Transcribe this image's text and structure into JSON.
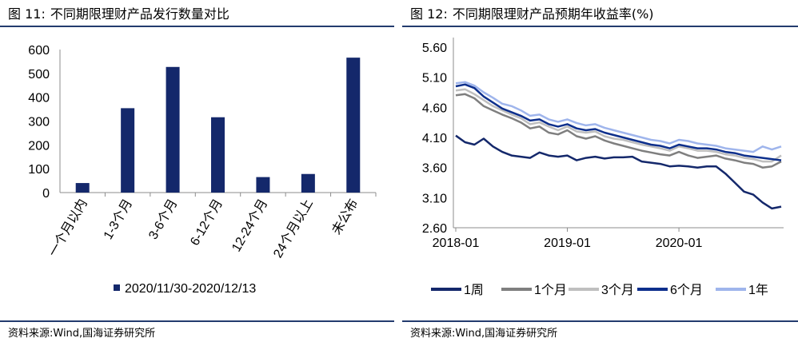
{
  "charts": [
    {
      "figure_label": "图 11:",
      "title": "不同期限理财产品发行数量对比",
      "source": "资料来源:Wind,国海证券研究所"
    },
    {
      "figure_label": "图 12:",
      "title": "不同期限理财产品预期年收益率(%)",
      "source": "资料来源:Wind,国海证券研究所"
    }
  ],
  "chart_data": [
    {
      "type": "bar",
      "title": "不同期限理财产品发行数量对比",
      "categories": [
        "一个月以内",
        "1-3个月",
        "3-6个月",
        "6-12个月",
        "12-24个月",
        "24个月以上",
        "未公布"
      ],
      "series": [
        {
          "name": "2020/11/30-2020/12/13",
          "values": [
            40,
            354,
            527,
            316,
            65,
            78,
            566
          ],
          "color": "#14286b"
        }
      ],
      "ylim": [
        0,
        600
      ],
      "yticks": [
        0,
        100,
        200,
        300,
        400,
        500,
        600
      ],
      "legend": "bottom",
      "xlabel": "",
      "ylabel": ""
    },
    {
      "type": "line",
      "title": "不同期限理财产品预期年收益率(%)",
      "x": [
        "2018-01",
        "2018-02",
        "2018-03",
        "2018-04",
        "2018-05",
        "2018-06",
        "2018-07",
        "2018-08",
        "2018-09",
        "2018-10",
        "2018-11",
        "2018-12",
        "2019-01",
        "2019-02",
        "2019-03",
        "2019-04",
        "2019-05",
        "2019-06",
        "2019-07",
        "2019-08",
        "2019-09",
        "2019-10",
        "2019-11",
        "2019-12",
        "2020-01",
        "2020-02",
        "2020-03",
        "2020-04",
        "2020-05",
        "2020-06",
        "2020-07",
        "2020-08",
        "2020-09",
        "2020-10",
        "2020-11",
        "2020-12"
      ],
      "xticks": [
        "2018-01",
        "2019-01",
        "2020-01"
      ],
      "yticks": [
        "2.60",
        "3.10",
        "3.60",
        "4.10",
        "4.60",
        "5.10",
        "5.60"
      ],
      "ylim": [
        2.6,
        5.6
      ],
      "legend": "bottom",
      "series": [
        {
          "name": "1周",
          "color": "#14286b",
          "values": [
            4.13,
            4.02,
            3.98,
            4.08,
            3.95,
            3.86,
            3.8,
            3.78,
            3.76,
            3.85,
            3.8,
            3.78,
            3.8,
            3.72,
            3.76,
            3.78,
            3.75,
            3.77,
            3.77,
            3.78,
            3.7,
            3.68,
            3.66,
            3.62,
            3.63,
            3.62,
            3.6,
            3.62,
            3.62,
            3.5,
            3.35,
            3.2,
            3.15,
            3.02,
            2.92,
            2.95
          ]
        },
        {
          "name": "1个月",
          "color": "#7f7f7f",
          "values": [
            4.8,
            4.82,
            4.75,
            4.62,
            4.55,
            4.48,
            4.42,
            4.35,
            4.25,
            4.28,
            4.18,
            4.15,
            4.22,
            4.12,
            4.08,
            4.12,
            4.05,
            4.0,
            3.96,
            3.92,
            3.88,
            3.85,
            3.82,
            3.8,
            3.86,
            3.8,
            3.76,
            3.78,
            3.8,
            3.75,
            3.72,
            3.68,
            3.66,
            3.6,
            3.62,
            3.7
          ]
        },
        {
          "name": "3个月",
          "color": "#bfbfbf",
          "values": [
            4.88,
            4.9,
            4.82,
            4.72,
            4.62,
            4.55,
            4.48,
            4.42,
            4.32,
            4.35,
            4.28,
            4.22,
            4.28,
            4.2,
            4.18,
            4.2,
            4.12,
            4.08,
            4.06,
            4.02,
            3.98,
            3.95,
            3.92,
            3.88,
            3.95,
            3.92,
            3.88,
            3.88,
            3.86,
            3.82,
            3.8,
            3.76,
            3.74,
            3.7,
            3.7,
            3.8
          ]
        },
        {
          "name": "6个月",
          "color": "#0d2f8c",
          "values": [
            4.95,
            4.98,
            4.92,
            4.78,
            4.68,
            4.58,
            4.52,
            4.46,
            4.38,
            4.4,
            4.32,
            4.28,
            4.32,
            4.25,
            4.22,
            4.24,
            4.18,
            4.14,
            4.1,
            4.06,
            4.02,
            3.98,
            3.96,
            3.92,
            3.98,
            3.95,
            3.92,
            3.92,
            3.9,
            3.86,
            3.84,
            3.8,
            3.78,
            3.76,
            3.74,
            3.72
          ]
        },
        {
          "name": "1年",
          "color": "#9fb5ec",
          "values": [
            5.0,
            5.02,
            4.96,
            4.85,
            4.76,
            4.66,
            4.62,
            4.55,
            4.46,
            4.48,
            4.4,
            4.36,
            4.4,
            4.34,
            4.3,
            4.32,
            4.26,
            4.22,
            4.18,
            4.14,
            4.1,
            4.06,
            4.04,
            4.0,
            4.06,
            4.04,
            4.0,
            3.98,
            3.96,
            3.92,
            3.9,
            3.88,
            3.86,
            3.95,
            3.9,
            3.95
          ]
        }
      ]
    }
  ]
}
